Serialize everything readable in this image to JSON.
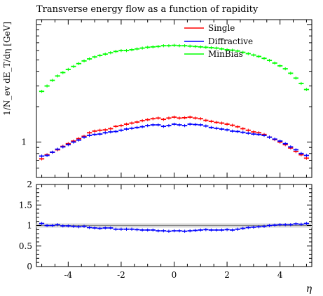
{
  "chart_data": {
    "type": "line",
    "title": "Transverse energy flow as a function of rapidity",
    "xlabel": "η",
    "ylabel": "1/N_ev dE_T/dη [GeV]",
    "legend_position": "top-right",
    "xlim": [
      -5.2,
      5.2
    ],
    "xticks": [
      -4,
      -2,
      0,
      2,
      4
    ],
    "xtick_labels": [
      "-4",
      "-2",
      "0",
      "2",
      "4"
    ],
    "main": {
      "yscale": "log",
      "ylim": [
        0.5,
        11
      ],
      "yticks": [
        1
      ],
      "ytick_labels": [
        "1"
      ]
    },
    "ratio": {
      "ylim": [
        0,
        2
      ],
      "yticks": [
        0,
        0.5,
        1,
        1.5,
        2
      ],
      "ytick_labels": [
        "0",
        "0.5",
        "1",
        "1.5",
        "2"
      ],
      "reference": 1
    },
    "series": [
      {
        "name": "Single",
        "color": "#ff0000",
        "x": [
          -5.0,
          -4.8,
          -4.6,
          -4.4,
          -4.2,
          -4.0,
          -3.8,
          -3.6,
          -3.4,
          -3.2,
          -3.0,
          -2.8,
          -2.6,
          -2.4,
          -2.2,
          -2.0,
          -1.8,
          -1.6,
          -1.4,
          -1.2,
          -1.0,
          -0.8,
          -0.6,
          -0.4,
          -0.2,
          0.0,
          0.2,
          0.4,
          0.6,
          0.8,
          1.0,
          1.2,
          1.4,
          1.6,
          1.8,
          2.0,
          2.2,
          2.4,
          2.6,
          2.8,
          3.0,
          3.2,
          3.4,
          3.6,
          3.8,
          4.0,
          4.2,
          4.4,
          4.6,
          4.8,
          5.0
        ],
        "values": [
          0.72,
          0.78,
          0.82,
          0.86,
          0.92,
          0.97,
          1.02,
          1.07,
          1.12,
          1.2,
          1.24,
          1.26,
          1.27,
          1.3,
          1.36,
          1.38,
          1.42,
          1.45,
          1.48,
          1.52,
          1.55,
          1.58,
          1.6,
          1.56,
          1.6,
          1.63,
          1.6,
          1.61,
          1.63,
          1.6,
          1.58,
          1.53,
          1.5,
          1.47,
          1.45,
          1.42,
          1.39,
          1.35,
          1.3,
          1.26,
          1.22,
          1.2,
          1.16,
          1.1,
          1.05,
          1.0,
          0.95,
          0.89,
          0.83,
          0.78,
          0.73
        ]
      },
      {
        "name": "Diffractive",
        "color": "#0000ff",
        "x": [
          -5.0,
          -4.8,
          -4.6,
          -4.4,
          -4.2,
          -4.0,
          -3.8,
          -3.6,
          -3.4,
          -3.2,
          -3.0,
          -2.8,
          -2.6,
          -2.4,
          -2.2,
          -2.0,
          -1.8,
          -1.6,
          -1.4,
          -1.2,
          -1.0,
          -0.8,
          -0.6,
          -0.4,
          -0.2,
          0.0,
          0.2,
          0.4,
          0.6,
          0.8,
          1.0,
          1.2,
          1.4,
          1.6,
          1.8,
          2.0,
          2.2,
          2.4,
          2.6,
          2.8,
          3.0,
          3.2,
          3.4,
          3.6,
          3.8,
          4.0,
          4.2,
          4.4,
          4.6,
          4.8,
          5.0
        ],
        "values": [
          0.76,
          0.77,
          0.82,
          0.87,
          0.91,
          0.95,
          1.0,
          1.04,
          1.1,
          1.14,
          1.16,
          1.17,
          1.2,
          1.22,
          1.23,
          1.26,
          1.29,
          1.31,
          1.33,
          1.35,
          1.38,
          1.4,
          1.4,
          1.36,
          1.38,
          1.42,
          1.4,
          1.38,
          1.42,
          1.41,
          1.4,
          1.37,
          1.33,
          1.31,
          1.29,
          1.27,
          1.24,
          1.23,
          1.21,
          1.19,
          1.17,
          1.16,
          1.14,
          1.1,
          1.06,
          1.02,
          0.97,
          0.91,
          0.86,
          0.8,
          0.77
        ]
      },
      {
        "name": "MinBias",
        "color": "#00ff00",
        "x": [
          -5.0,
          -4.8,
          -4.6,
          -4.4,
          -4.2,
          -4.0,
          -3.8,
          -3.6,
          -3.4,
          -3.2,
          -3.0,
          -2.8,
          -2.6,
          -2.4,
          -2.2,
          -2.0,
          -1.8,
          -1.6,
          -1.4,
          -1.2,
          -1.0,
          -0.8,
          -0.6,
          -0.4,
          -0.2,
          0.0,
          0.2,
          0.4,
          0.6,
          0.8,
          1.0,
          1.2,
          1.4,
          1.6,
          1.8,
          2.0,
          2.2,
          2.4,
          2.6,
          2.8,
          3.0,
          3.2,
          3.4,
          3.6,
          3.8,
          4.0,
          4.2,
          4.4,
          4.6,
          4.8,
          5.0
        ],
        "values": [
          2.7,
          3.0,
          3.35,
          3.65,
          3.9,
          4.15,
          4.4,
          4.65,
          4.9,
          5.1,
          5.3,
          5.45,
          5.6,
          5.75,
          5.9,
          6.0,
          6.0,
          6.1,
          6.2,
          6.3,
          6.4,
          6.45,
          6.5,
          6.6,
          6.6,
          6.65,
          6.6,
          6.6,
          6.55,
          6.5,
          6.45,
          6.4,
          6.35,
          6.3,
          6.2,
          6.1,
          6.05,
          5.95,
          5.8,
          5.65,
          5.5,
          5.35,
          5.15,
          4.95,
          4.7,
          4.45,
          4.2,
          3.85,
          3.5,
          3.15,
          2.8
        ]
      }
    ],
    "ratio_series": [
      {
        "name": "Diffractive",
        "color": "#0000ff",
        "x": [
          -5.0,
          -4.8,
          -4.6,
          -4.4,
          -4.2,
          -4.0,
          -3.8,
          -3.6,
          -3.4,
          -3.2,
          -3.0,
          -2.8,
          -2.6,
          -2.4,
          -2.2,
          -2.0,
          -1.8,
          -1.6,
          -1.4,
          -1.2,
          -1.0,
          -0.8,
          -0.6,
          -0.4,
          -0.2,
          0.0,
          0.2,
          0.4,
          0.6,
          0.8,
          1.0,
          1.2,
          1.4,
          1.6,
          1.8,
          2.0,
          2.2,
          2.4,
          2.6,
          2.8,
          3.0,
          3.2,
          3.4,
          3.6,
          3.8,
          4.0,
          4.2,
          4.4,
          4.6,
          4.8,
          5.0
        ],
        "values": [
          1.05,
          1.0,
          1.0,
          1.02,
          0.99,
          0.99,
          0.98,
          0.97,
          0.98,
          0.95,
          0.94,
          0.93,
          0.94,
          0.94,
          0.91,
          0.91,
          0.91,
          0.91,
          0.9,
          0.89,
          0.89,
          0.89,
          0.87,
          0.87,
          0.86,
          0.87,
          0.87,
          0.86,
          0.87,
          0.88,
          0.89,
          0.9,
          0.89,
          0.89,
          0.89,
          0.9,
          0.89,
          0.91,
          0.93,
          0.95,
          0.96,
          0.97,
          0.98,
          1.0,
          1.01,
          1.02,
          1.02,
          1.02,
          1.04,
          1.03,
          1.05
        ]
      }
    ]
  }
}
